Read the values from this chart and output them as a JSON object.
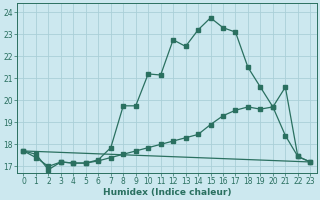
{
  "xlabel": "Humidex (Indice chaleur)",
  "bg_color": "#cce8ef",
  "grid_color": "#aacfd8",
  "line_color": "#2a7060",
  "xlim": [
    -0.5,
    23.5
  ],
  "ylim": [
    16.7,
    24.4
  ],
  "xticks": [
    0,
    1,
    2,
    3,
    4,
    5,
    6,
    7,
    8,
    9,
    10,
    11,
    12,
    13,
    14,
    15,
    16,
    17,
    18,
    19,
    20,
    21,
    22,
    23
  ],
  "yticks": [
    17,
    18,
    19,
    20,
    21,
    22,
    23,
    24
  ],
  "line1_x": [
    0,
    1,
    2,
    3,
    4,
    5,
    6,
    7,
    8,
    9,
    10,
    11,
    12,
    13,
    14,
    15,
    16,
    17,
    18,
    19,
    20,
    21,
    22,
    23
  ],
  "line1_y": [
    17.7,
    17.55,
    16.85,
    17.2,
    17.15,
    17.15,
    17.3,
    17.85,
    19.75,
    19.75,
    21.2,
    21.15,
    22.75,
    22.45,
    23.2,
    23.75,
    23.3,
    23.1,
    21.5,
    20.6,
    19.7,
    20.6,
    17.45,
    17.2
  ],
  "line2_x": [
    0,
    1,
    2,
    3,
    4,
    5,
    6,
    7,
    8,
    9,
    10,
    11,
    12,
    13,
    14,
    15,
    16,
    17,
    18,
    19,
    20,
    21,
    22,
    23
  ],
  "line2_y": [
    17.7,
    17.4,
    17.0,
    17.2,
    17.15,
    17.15,
    17.25,
    17.4,
    17.55,
    17.7,
    17.85,
    18.0,
    18.15,
    18.3,
    18.45,
    18.9,
    19.3,
    19.55,
    19.7,
    19.6,
    19.7,
    18.4,
    17.45,
    17.2
  ],
  "line3_x": [
    0,
    23
  ],
  "line3_y": [
    17.7,
    17.2
  ]
}
